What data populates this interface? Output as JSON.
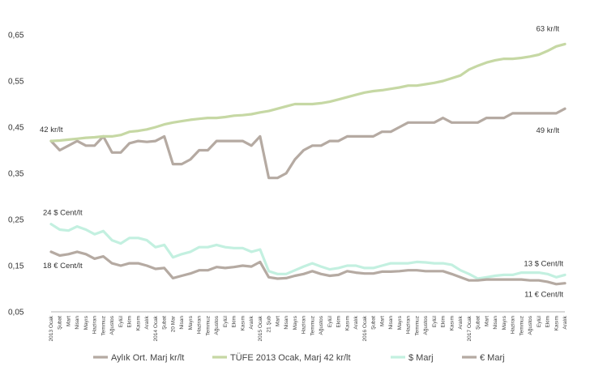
{
  "chart_data": {
    "type": "line",
    "title": "",
    "xlabel": "",
    "ylabel": "",
    "ylim": [
      0.05,
      0.65
    ],
    "yticks": [
      "0,05",
      "0,15",
      "0,25",
      "0,35",
      "0,45",
      "0,55",
      "0,65"
    ],
    "ytick_values": [
      0.05,
      0.15,
      0.25,
      0.35,
      0.45,
      0.55,
      0.65
    ],
    "grid": false,
    "legend": "bottom",
    "x": [
      "2013 Ocak",
      "Şubat",
      "Mart",
      "Nisan",
      "Mayıs",
      "Haziran",
      "Temmuz",
      "Ağustos",
      "Eylül",
      "Ekim",
      "Kasım",
      "Aralık",
      "2014 Ocak",
      "Şubat",
      "20 Mar",
      "Nisan",
      "Mayıs",
      "Haziran",
      "Temmuz",
      "Ağustos",
      "Eylül",
      "Ekim",
      "Kasım",
      "Aralık",
      "2015 Ocak",
      "21 Şub",
      "Mart",
      "Nisan",
      "Mayıs",
      "Haziran",
      "Temmuz",
      "Ağustos",
      "Eylül",
      "Ekim",
      "Kasım",
      "Aralık",
      "2016 Ocak",
      "Şubat",
      "Mart",
      "Nisan",
      "Mayıs",
      "Haziran",
      "Temmuz",
      "Ağustos",
      "Eylül",
      "Ekim",
      "Kasım",
      "Aralık",
      "2017 Ocak",
      "Şubat",
      "Mart",
      "Nisan",
      "Mayıs",
      "Haziran",
      "Temmuz",
      "Ağustos",
      "Eylül",
      "Ekim",
      "Kasım",
      "Aralık"
    ],
    "series": [
      {
        "name": "Aylık Ort. Marj kr/lt",
        "color": "#b5aaa2",
        "values": [
          0.42,
          0.4,
          0.41,
          0.42,
          0.41,
          0.41,
          0.43,
          0.395,
          0.395,
          0.415,
          0.42,
          0.418,
          0.42,
          0.43,
          0.37,
          0.37,
          0.38,
          0.4,
          0.4,
          0.42,
          0.42,
          0.42,
          0.42,
          0.41,
          0.43,
          0.34,
          0.34,
          0.35,
          0.38,
          0.4,
          0.41,
          0.41,
          0.42,
          0.42,
          0.43,
          0.43,
          0.43,
          0.43,
          0.44,
          0.44,
          0.45,
          0.46,
          0.46,
          0.46,
          0.46,
          0.47,
          0.46,
          0.46,
          0.46,
          0.46,
          0.47,
          0.47,
          0.47,
          0.48,
          0.48,
          0.48,
          0.48,
          0.48,
          0.48,
          0.49
        ]
      },
      {
        "name": "TÜFE 2013 Ocak, Marj 42 kr/lt",
        "color": "#c6d8a4",
        "values": [
          0.42,
          0.421,
          0.423,
          0.425,
          0.427,
          0.428,
          0.43,
          0.43,
          0.433,
          0.44,
          0.442,
          0.445,
          0.45,
          0.456,
          0.46,
          0.463,
          0.466,
          0.468,
          0.47,
          0.47,
          0.472,
          0.475,
          0.476,
          0.478,
          0.482,
          0.485,
          0.49,
          0.495,
          0.5,
          0.5,
          0.5,
          0.502,
          0.505,
          0.51,
          0.515,
          0.52,
          0.525,
          0.528,
          0.53,
          0.533,
          0.536,
          0.54,
          0.54,
          0.543,
          0.546,
          0.55,
          0.556,
          0.562,
          0.575,
          0.583,
          0.59,
          0.595,
          0.598,
          0.598,
          0.6,
          0.603,
          0.607,
          0.615,
          0.625,
          0.63
        ]
      },
      {
        "name": "$ Marj",
        "color": "#c3f0e0",
        "values": [
          0.24,
          0.228,
          0.226,
          0.235,
          0.228,
          0.218,
          0.225,
          0.205,
          0.198,
          0.21,
          0.21,
          0.205,
          0.19,
          0.195,
          0.168,
          0.175,
          0.18,
          0.19,
          0.19,
          0.195,
          0.19,
          0.188,
          0.188,
          0.18,
          0.185,
          0.138,
          0.132,
          0.132,
          0.14,
          0.148,
          0.155,
          0.148,
          0.142,
          0.145,
          0.15,
          0.15,
          0.145,
          0.145,
          0.15,
          0.155,
          0.155,
          0.155,
          0.158,
          0.157,
          0.155,
          0.155,
          0.152,
          0.14,
          0.132,
          0.122,
          0.125,
          0.128,
          0.13,
          0.13,
          0.135,
          0.135,
          0.135,
          0.132,
          0.125,
          0.13
        ]
      },
      {
        "name": "€ Marj",
        "color": "#b5aaa2",
        "values": [
          0.18,
          0.172,
          0.175,
          0.18,
          0.175,
          0.165,
          0.17,
          0.155,
          0.15,
          0.155,
          0.155,
          0.15,
          0.143,
          0.145,
          0.123,
          0.128,
          0.133,
          0.14,
          0.14,
          0.147,
          0.145,
          0.147,
          0.15,
          0.148,
          0.158,
          0.125,
          0.122,
          0.123,
          0.128,
          0.132,
          0.138,
          0.132,
          0.128,
          0.13,
          0.138,
          0.135,
          0.133,
          0.133,
          0.137,
          0.137,
          0.138,
          0.14,
          0.14,
          0.138,
          0.138,
          0.138,
          0.132,
          0.125,
          0.118,
          0.118,
          0.12,
          0.12,
          0.12,
          0.12,
          0.12,
          0.118,
          0.118,
          0.115,
          0.11,
          0.112
        ]
      }
    ],
    "annotations": [
      {
        "text": "63 kr/lt",
        "series": 1,
        "index": 59
      },
      {
        "text": "42 kr/lt",
        "series": 1,
        "index": 0
      },
      {
        "text": "49 kr/lt",
        "series": 0,
        "index": 59
      },
      {
        "text": "24 $ Cent/lt",
        "series": 2,
        "index": 0
      },
      {
        "text": "18 € Cent/lt",
        "series": 3,
        "index": 0
      },
      {
        "text": "13 $ Cent/lt",
        "series": 2,
        "index": 59
      },
      {
        "text": "11 € Cent/lt",
        "series": 3,
        "index": 59
      }
    ]
  }
}
